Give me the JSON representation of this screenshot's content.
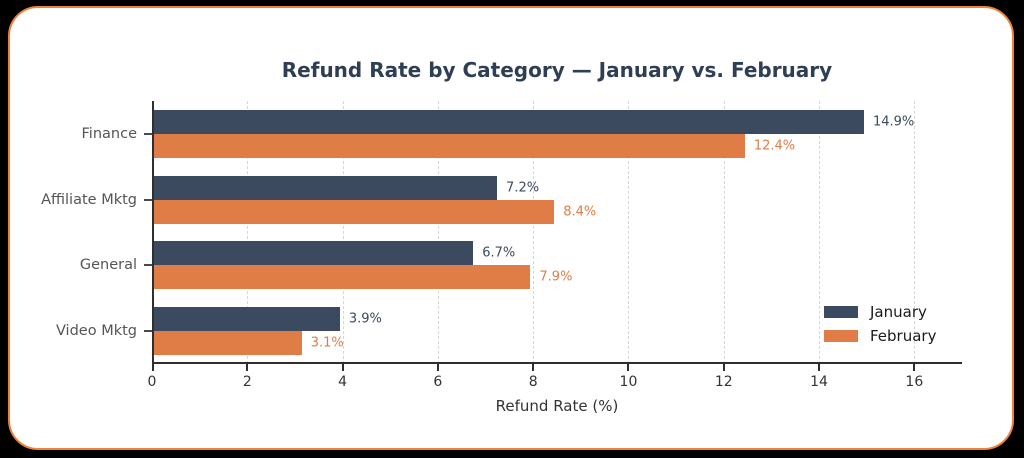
{
  "frame": {
    "background_color": "#000000",
    "card_background_color": "#ffffff",
    "card_border_color": "#f08138"
  },
  "chart_data": {
    "type": "bar",
    "orientation": "horizontal",
    "title": "Refund Rate by Category — January vs. February",
    "xlabel": "Refund Rate (%)",
    "categories": [
      "Finance",
      "Affiliate Mktg",
      "General",
      "Video Mktg"
    ],
    "series": [
      {
        "name": "January",
        "color": "#3b4a5e",
        "values": [
          14.9,
          7.2,
          6.7,
          3.9
        ],
        "bar_labels": [
          "14.9%",
          "7.2%",
          "6.7%",
          "3.9%"
        ]
      },
      {
        "name": "February",
        "color": "#e07c45",
        "values": [
          12.4,
          8.4,
          7.9,
          3.1
        ],
        "bar_labels": [
          "12.4%",
          "8.4%",
          "7.9%",
          "3.1%"
        ]
      }
    ],
    "xlim": [
      0,
      17
    ],
    "xticks": [
      0,
      2,
      4,
      6,
      8,
      10,
      12,
      14,
      16
    ],
    "grid": {
      "axis": "x",
      "style": "dashed",
      "color": "#d7d7d7"
    },
    "legend": {
      "position": "lower right",
      "entries": [
        "January",
        "February"
      ]
    },
    "styles": {
      "title_color": "#2e3f55",
      "axis_color": "#2f2f2f",
      "category_label_color": "#555555",
      "tick_label_color": "#333333",
      "legend_text_color": "#1a1a1a"
    }
  }
}
